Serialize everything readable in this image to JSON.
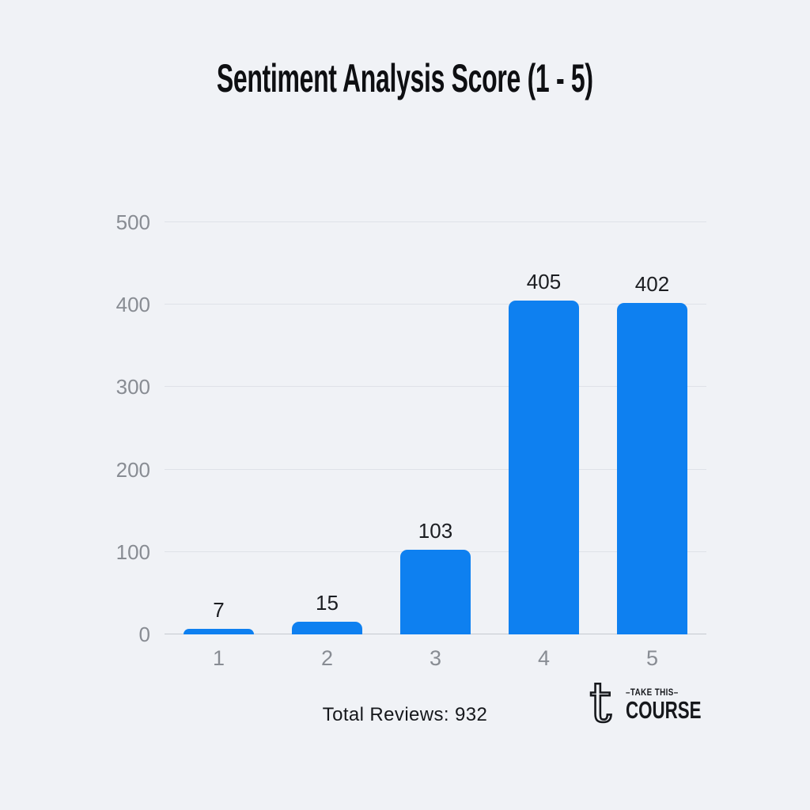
{
  "chart_data": {
    "type": "bar",
    "title": "Sentiment Analysis Score (1 - 5)",
    "categories": [
      "1",
      "2",
      "3",
      "4",
      "5"
    ],
    "values": [
      7,
      15,
      103,
      405,
      402
    ],
    "xlabel": "",
    "ylabel": "",
    "ylim": [
      0,
      500
    ],
    "yticks": [
      0,
      100,
      200,
      300,
      400,
      500
    ],
    "grid": true,
    "legend_position": "none",
    "bar_color": "#0e80f0"
  },
  "footer": {
    "total_label": "Total Reviews: 932"
  },
  "logo": {
    "icon_glyph": "t",
    "tagline": "–TAKE THIS–",
    "wordmark": "COURSE"
  },
  "colors": {
    "background": "#f0f2f6",
    "bar": "#0e80f0",
    "gridline": "#dfe2e8",
    "axis_baseline": "#c5c9d0",
    "tick_text": "#888c93",
    "title_text": "#0e0f12",
    "value_label_text": "#1b1d21",
    "footer_text": "#16181c",
    "logo_text": "#16181c"
  }
}
